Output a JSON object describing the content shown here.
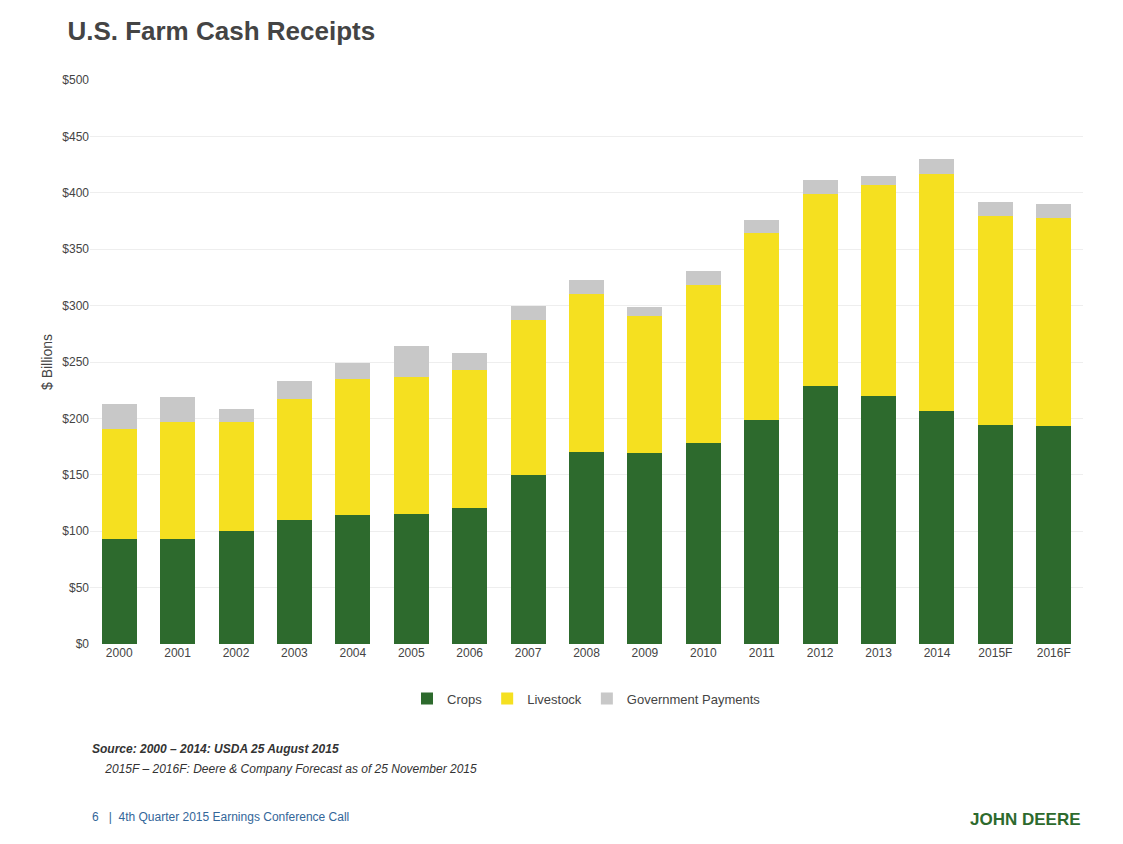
{
  "chart_data": {
    "type": "bar",
    "stacked": true,
    "title": "U.S. Farm Cash Receipts",
    "ylabel": "$ Billions",
    "categories": [
      "2000",
      "2001",
      "2002",
      "2003",
      "2004",
      "2005",
      "2006",
      "2007",
      "2008",
      "2009",
      "2010",
      "2011",
      "2012",
      "2013",
      "2014",
      "2015F",
      "2016F"
    ],
    "series": [
      {
        "name": "Crops",
        "color": "#2d6a2d",
        "values": [
          93,
          93,
          100,
          110,
          114,
          115,
          121,
          150,
          170,
          169,
          178,
          199,
          229,
          220,
          207,
          194,
          193
        ]
      },
      {
        "name": "Livestock",
        "color": "#f5e020",
        "values": [
          98,
          104,
          97,
          107,
          121,
          122,
          122,
          137,
          140,
          122,
          140,
          165,
          170,
          187,
          210,
          185,
          185
        ]
      },
      {
        "name": "Government Payments",
        "color": "#c8c8c8",
        "values": [
          22,
          22,
          11,
          16,
          14,
          27,
          15,
          13,
          13,
          8,
          13,
          12,
          12,
          8,
          13,
          13,
          12
        ]
      }
    ],
    "ylim": [
      0,
      500
    ],
    "yticks": [
      {
        "value": 0,
        "label": "$0"
      },
      {
        "value": 50,
        "label": "$50"
      },
      {
        "value": 100,
        "label": "$100"
      },
      {
        "value": 150,
        "label": "$150"
      },
      {
        "value": 200,
        "label": "$200"
      },
      {
        "value": 250,
        "label": "$250"
      },
      {
        "value": 300,
        "label": "$300"
      },
      {
        "value": 350,
        "label": "$350"
      },
      {
        "value": 400,
        "label": "$400"
      },
      {
        "value": 450,
        "label": "$450"
      },
      {
        "value": 500,
        "label": "$500"
      }
    ],
    "grid": true,
    "legend": "bottom",
    "annotations": [
      "Source: 2000 – 2014: USDA 25 August 2015",
      "    2015F – 2016F: Deere & Company Forecast as of 25 November 2015",
      "6   |  4th Quarter 2015 Earnings Conference Call",
      "JOHN DEERE"
    ]
  }
}
